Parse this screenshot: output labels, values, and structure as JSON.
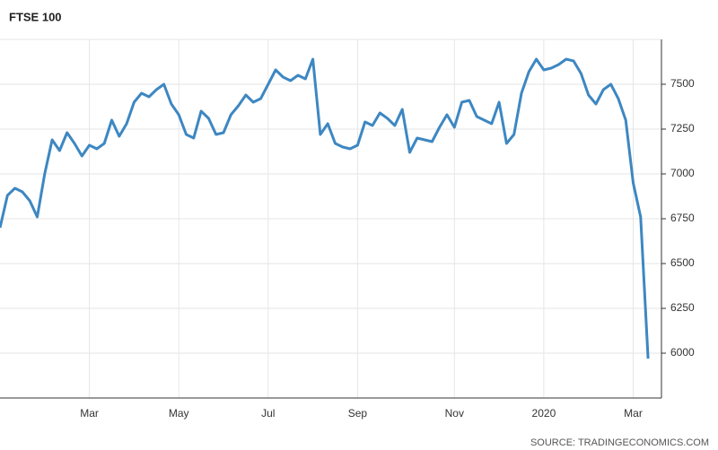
{
  "chart_data": {
    "type": "line",
    "title": "FTSE 100",
    "source": "SOURCE: TRADINGECONOMICS.COM",
    "categories": [
      null,
      null,
      null,
      null,
      null,
      null,
      null,
      null,
      null,
      null,
      null,
      null,
      "Mar",
      null,
      null,
      null,
      null,
      null,
      null,
      null,
      null,
      null,
      null,
      null,
      "May",
      null,
      null,
      null,
      null,
      null,
      null,
      null,
      null,
      null,
      null,
      null,
      "Jul",
      null,
      null,
      null,
      null,
      null,
      null,
      null,
      null,
      null,
      null,
      null,
      "Sep",
      null,
      null,
      null,
      null,
      null,
      null,
      null,
      null,
      null,
      null,
      null,
      null,
      "Nov",
      null,
      null,
      null,
      null,
      null,
      null,
      null,
      null,
      null,
      null,
      null,
      "2020",
      null,
      null,
      null,
      null,
      null,
      null,
      null,
      null,
      null,
      null,
      null,
      "Mar",
      null,
      null
    ],
    "series": [
      {
        "name": "FTSE 100",
        "color": "#3d87c2",
        "values": [
          6700,
          6880,
          6920,
          6900,
          6850,
          6760,
          7000,
          7190,
          7130,
          7230,
          7170,
          7100,
          7160,
          7140,
          7170,
          7300,
          7210,
          7280,
          7400,
          7450,
          7430,
          7470,
          7500,
          7390,
          7330,
          7220,
          7200,
          7350,
          7310,
          7220,
          7230,
          7330,
          7380,
          7440,
          7400,
          7420,
          7500,
          7580,
          7540,
          7520,
          7550,
          7530,
          7640,
          7220,
          7280,
          7170,
          7150,
          7140,
          7160,
          7290,
          7270,
          7340,
          7310,
          7270,
          7360,
          7120,
          7200,
          7190,
          7180,
          7260,
          7330,
          7260,
          7400,
          7410,
          7320,
          7300,
          7280,
          7400,
          7170,
          7220,
          7450,
          7570,
          7640,
          7580,
          7590,
          7610,
          7640,
          7630,
          7560,
          7440,
          7390,
          7470,
          7500,
          7420,
          7300,
          6950,
          6760,
          5970
        ]
      }
    ],
    "ylim": [
      5750,
      7750
    ],
    "yticks": [
      6000,
      6250,
      6500,
      6750,
      7000,
      7250,
      7500
    ],
    "grid": true
  }
}
